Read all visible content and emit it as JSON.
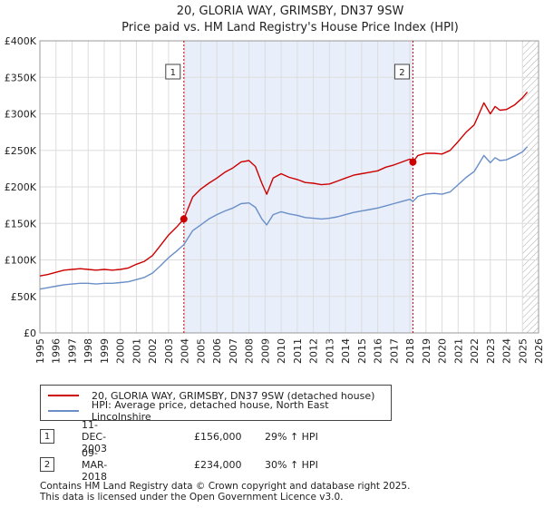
{
  "chart_data": {
    "type": "line",
    "title": "20, GLORIA WAY, GRIMSBY, DN37 9SW",
    "subtitle": "Price paid vs. HM Land Registry's House Price Index (HPI)",
    "xlabel": "",
    "ylabel": "",
    "xlim": [
      1995,
      2026
    ],
    "ylim": [
      0,
      400000
    ],
    "x_ticks": [
      1995,
      1996,
      1997,
      1998,
      1999,
      2000,
      2001,
      2002,
      2003,
      2004,
      2005,
      2006,
      2007,
      2008,
      2009,
      2010,
      2011,
      2012,
      2013,
      2014,
      2015,
      2016,
      2017,
      2018,
      2019,
      2020,
      2021,
      2022,
      2023,
      2024,
      2025,
      2026
    ],
    "y_ticks": [
      {
        "value": 0,
        "label": "£0"
      },
      {
        "value": 50000,
        "label": "£50K"
      },
      {
        "value": 100000,
        "label": "£100K"
      },
      {
        "value": 150000,
        "label": "£150K"
      },
      {
        "value": 200000,
        "label": "£200K"
      },
      {
        "value": 250000,
        "label": "£250K"
      },
      {
        "value": 300000,
        "label": "£300K"
      },
      {
        "value": 350000,
        "label": "£350K"
      },
      {
        "value": 400000,
        "label": "£400K"
      }
    ],
    "grid": true,
    "shaded_region": {
      "from": 2003.95,
      "to": 2018.19
    },
    "hatched_from": 2025.0,
    "series": [
      {
        "name": "20, GLORIA WAY, GRIMSBY, DN37 9SW (detached house)",
        "color": "#cc0000",
        "x": [
          1995.0,
          1995.5,
          1996.0,
          1996.5,
          1997.0,
          1997.5,
          1998.0,
          1998.5,
          1999.0,
          1999.5,
          2000.0,
          2000.5,
          2001.0,
          2001.5,
          2002.0,
          2002.5,
          2003.0,
          2003.5,
          2003.95,
          2004.5,
          2005.0,
          2005.5,
          2006.0,
          2006.5,
          2007.0,
          2007.5,
          2008.0,
          2008.4,
          2008.8,
          2009.1,
          2009.5,
          2010.0,
          2010.5,
          2011.0,
          2011.5,
          2012.0,
          2012.5,
          2013.0,
          2013.5,
          2014.0,
          2014.5,
          2015.0,
          2015.5,
          2016.0,
          2016.5,
          2017.0,
          2017.5,
          2018.0,
          2018.19,
          2018.5,
          2019.0,
          2019.5,
          2020.0,
          2020.5,
          2021.0,
          2021.5,
          2022.0,
          2022.3,
          2022.6,
          2023.0,
          2023.3,
          2023.6,
          2024.0,
          2024.5,
          2025.0,
          2025.3
        ],
        "values": [
          78000,
          80000,
          83000,
          86000,
          87000,
          88000,
          87000,
          86000,
          87000,
          86000,
          87000,
          89000,
          94000,
          98000,
          106000,
          120000,
          134000,
          145000,
          156000,
          186000,
          197000,
          205000,
          212000,
          220000,
          226000,
          234000,
          236000,
          228000,
          205000,
          190000,
          212000,
          218000,
          213000,
          210000,
          206000,
          205000,
          203000,
          204000,
          208000,
          212000,
          216000,
          218000,
          220000,
          222000,
          227000,
          230000,
          234000,
          238000,
          234000,
          243000,
          246000,
          246000,
          245000,
          250000,
          262000,
          275000,
          285000,
          300000,
          315000,
          300000,
          310000,
          305000,
          306000,
          312000,
          322000,
          330000
        ]
      },
      {
        "name": "HPI: Average price, detached house, North East Lincolnshire",
        "color": "#6a8fc8",
        "x": [
          1995.0,
          1995.5,
          1996.0,
          1996.5,
          1997.0,
          1997.5,
          1998.0,
          1998.5,
          1999.0,
          1999.5,
          2000.0,
          2000.5,
          2001.0,
          2001.5,
          2002.0,
          2002.5,
          2003.0,
          2003.5,
          2003.95,
          2004.5,
          2005.0,
          2005.5,
          2006.0,
          2006.5,
          2007.0,
          2007.5,
          2008.0,
          2008.4,
          2008.8,
          2009.1,
          2009.5,
          2010.0,
          2010.5,
          2011.0,
          2011.5,
          2012.0,
          2012.5,
          2013.0,
          2013.5,
          2014.0,
          2014.5,
          2015.0,
          2015.5,
          2016.0,
          2016.5,
          2017.0,
          2017.5,
          2018.0,
          2018.19,
          2018.5,
          2019.0,
          2019.5,
          2020.0,
          2020.5,
          2021.0,
          2021.5,
          2022.0,
          2022.3,
          2022.6,
          2023.0,
          2023.3,
          2023.6,
          2024.0,
          2024.5,
          2025.0,
          2025.3
        ],
        "values": [
          60000,
          62000,
          64000,
          66000,
          67000,
          68000,
          68000,
          67000,
          68000,
          68000,
          69000,
          70000,
          73000,
          76000,
          82000,
          92000,
          103000,
          112000,
          121000,
          140000,
          148000,
          156000,
          162000,
          167000,
          171000,
          177000,
          178000,
          172000,
          156000,
          148000,
          162000,
          166000,
          163000,
          161000,
          158000,
          157000,
          156000,
          157000,
          159000,
          162000,
          165000,
          167000,
          169000,
          171000,
          174000,
          177000,
          180000,
          183000,
          180000,
          187000,
          190000,
          191000,
          190000,
          193000,
          203000,
          213000,
          221000,
          232000,
          243000,
          233000,
          240000,
          236000,
          237000,
          242000,
          248000,
          255000
        ]
      }
    ],
    "markers": [
      {
        "label": "1",
        "x": 2003.95,
        "y": 156000,
        "color": "#cc0000"
      },
      {
        "label": "2",
        "x": 2018.19,
        "y": 234000,
        "color": "#cc0000"
      }
    ]
  },
  "legend": {
    "items": [
      {
        "label": "20, GLORIA WAY, GRIMSBY, DN37 9SW (detached house)",
        "color": "#cc0000"
      },
      {
        "label": "HPI: Average price, detached house, North East Lincolnshire",
        "color": "#6a8fc8"
      }
    ]
  },
  "annotations": [
    {
      "num": "1",
      "date": "11-DEC-2003",
      "price": "£156,000",
      "hpi": "29% ↑ HPI"
    },
    {
      "num": "2",
      "date": "09-MAR-2018",
      "price": "£234,000",
      "hpi": "30% ↑ HPI"
    }
  ],
  "footer": {
    "line1": "Contains HM Land Registry data © Crown copyright and database right 2025.",
    "line2": "This data is licensed under the Open Government Licence v3.0."
  },
  "colors": {
    "shade": "#e8eefa",
    "grid": "#dddddd",
    "property": "#cc0000",
    "hpi": "#6a8fc8"
  }
}
